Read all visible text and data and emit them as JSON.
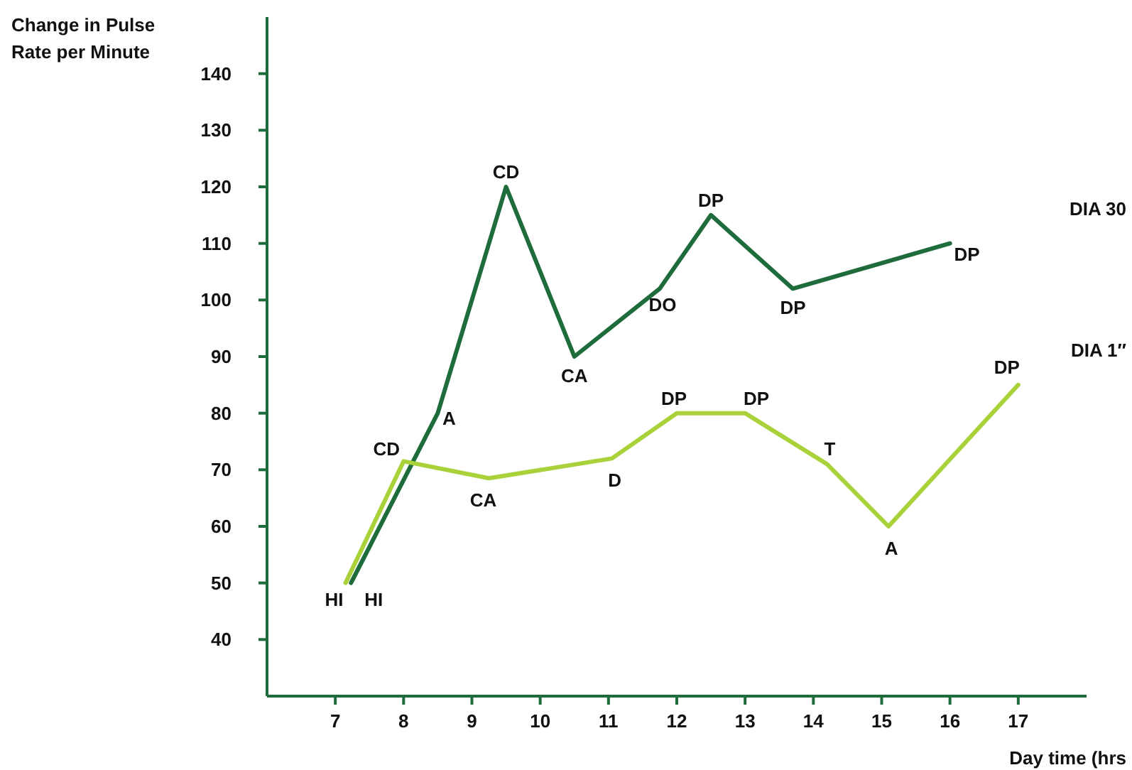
{
  "chart_data": {
    "type": "line",
    "ylabel": "Change in Pulse Rate per Minute",
    "xlabel": "Day time (hrs",
    "xlim": [
      6,
      18
    ],
    "ylim": [
      30,
      150
    ],
    "xticks": [
      7,
      8,
      9,
      10,
      11,
      12,
      13,
      14,
      15,
      16,
      17
    ],
    "yticks": [
      40,
      50,
      60,
      70,
      80,
      90,
      100,
      110,
      120,
      130,
      140
    ],
    "grid": false,
    "marker": "none",
    "line_style": "solid",
    "series": [
      {
        "name": "DIA 30",
        "color": "#1e6b3c",
        "x": [
          7.23,
          8.5,
          9.5,
          10.5,
          11.75,
          12.5,
          13.7,
          16
        ],
        "values": [
          50,
          80,
          120,
          90,
          102,
          115,
          102,
          110
        ]
      },
      {
        "name": "DIA 1″",
        "color": "#a8d13a",
        "x": [
          7.15,
          8,
          9.25,
          11.05,
          12,
          13,
          14.2,
          15.1,
          17
        ],
        "values": [
          50,
          71.5,
          68.5,
          72,
          80,
          80,
          71,
          60,
          85
        ]
      }
    ],
    "annotations": [
      {
        "text": "HI",
        "x": 7.15,
        "y": 50
      },
      {
        "text": "HI",
        "x": 7.23,
        "y": 50
      },
      {
        "text": "A",
        "x": 8.5,
        "y": 80
      },
      {
        "text": "CD",
        "x": 9.5,
        "y": 120
      },
      {
        "text": "CA",
        "x": 10.5,
        "y": 90
      },
      {
        "text": "DO",
        "x": 11.75,
        "y": 102
      },
      {
        "text": "DP",
        "x": 12.5,
        "y": 115
      },
      {
        "text": "DP",
        "x": 13.7,
        "y": 102
      },
      {
        "text": "DP",
        "x": 16,
        "y": 110
      },
      {
        "text": "CD",
        "x": 8,
        "y": 71.5
      },
      {
        "text": "CA",
        "x": 9.25,
        "y": 68.5
      },
      {
        "text": "D",
        "x": 11.05,
        "y": 72
      },
      {
        "text": "DP",
        "x": 12,
        "y": 80
      },
      {
        "text": "DP",
        "x": 13,
        "y": 80
      },
      {
        "text": "T",
        "x": 14.2,
        "y": 71
      },
      {
        "text": "A",
        "x": 15.1,
        "y": 60
      },
      {
        "text": "DP",
        "x": 17,
        "y": 85
      }
    ]
  }
}
